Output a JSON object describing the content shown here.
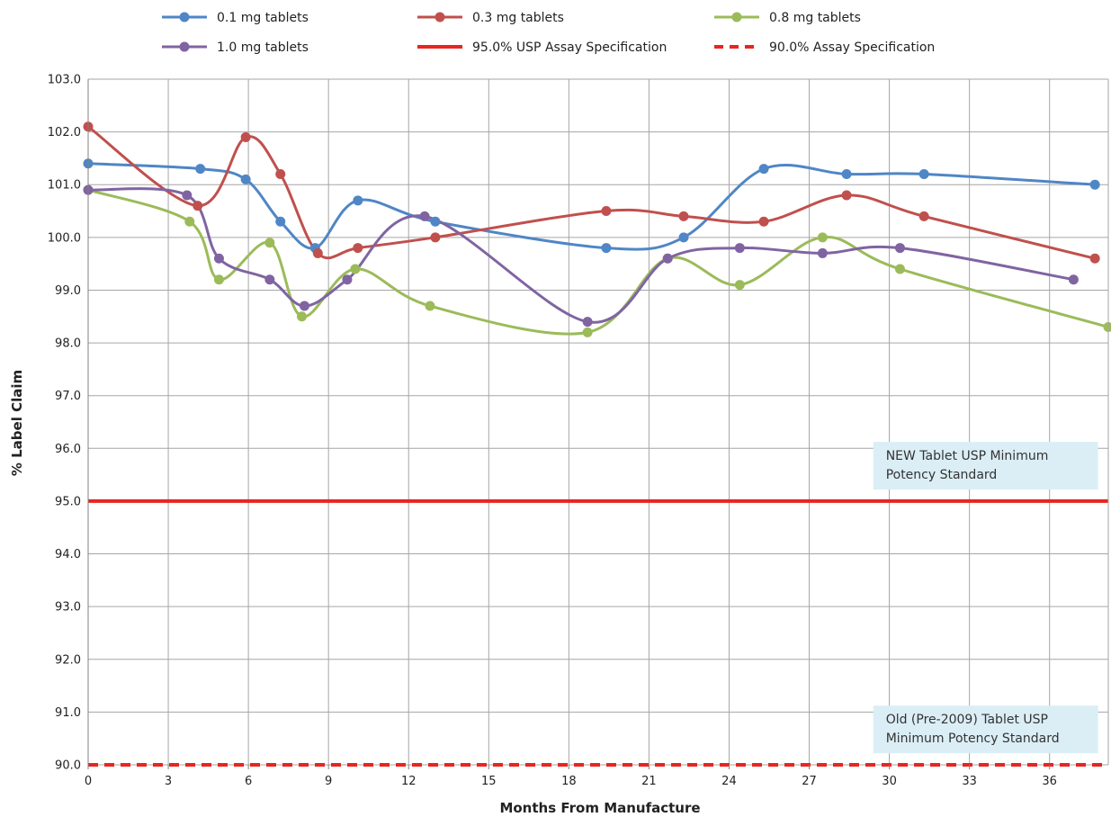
{
  "chart_data": {
    "type": "line",
    "xlabel": "Months From Manufacture",
    "ylabel": "% Label Claim",
    "xlim": [
      0,
      38.2
    ],
    "ylim": [
      90.0,
      103.0
    ],
    "xticks": [
      "0",
      "3",
      "6",
      "9",
      "12",
      "15",
      "18",
      "21",
      "24",
      "27",
      "30",
      "33",
      "36"
    ],
    "xtick_values": [
      0,
      3,
      6,
      9,
      12,
      15,
      18,
      21,
      24,
      27,
      30,
      33,
      36
    ],
    "yticks": [
      "90.0",
      "91.0",
      "92.0",
      "93.0",
      "94.0",
      "95.0",
      "96.0",
      "97.0",
      "98.0",
      "99.0",
      "100.0",
      "101.0",
      "102.0",
      "103.0"
    ],
    "ytick_values": [
      90,
      91,
      92,
      93,
      94,
      95,
      96,
      97,
      98,
      99,
      100,
      101,
      102,
      103
    ],
    "grid": true,
    "legend_position": "top",
    "series": [
      {
        "name": "0.1 mg tablets",
        "color": "#4f86c6",
        "smooth": true,
        "x": [
          0,
          4.2,
          5.9,
          7.2,
          8.5,
          10.1,
          13.0,
          19.4,
          22.3,
          25.3,
          28.4,
          31.3,
          37.7
        ],
        "y": [
          101.4,
          101.3,
          101.1,
          100.3,
          99.8,
          100.7,
          100.3,
          99.8,
          100.0,
          101.3,
          101.2,
          101.2,
          101.0
        ]
      },
      {
        "name": "0.3 mg tablets",
        "color": "#c0504d",
        "smooth": true,
        "x": [
          0,
          4.1,
          5.9,
          7.2,
          8.6,
          10.1,
          13.0,
          19.4,
          22.3,
          25.3,
          28.4,
          31.3,
          37.7
        ],
        "y": [
          102.1,
          100.6,
          101.9,
          101.2,
          99.7,
          99.8,
          100.0,
          100.5,
          100.4,
          100.3,
          100.8,
          100.4,
          99.6
        ]
      },
      {
        "name": "0.8 mg tablets",
        "color": "#9bbb59",
        "smooth": true,
        "x": [
          0,
          3.8,
          4.9,
          6.8,
          8.0,
          10.0,
          12.8,
          18.7,
          21.7,
          24.4,
          27.5,
          30.4,
          38.2
        ],
        "y": [
          100.9,
          100.3,
          99.2,
          99.9,
          98.5,
          99.4,
          98.7,
          98.2,
          99.6,
          99.1,
          100.0,
          99.4,
          98.3
        ]
      },
      {
        "name": "1.0 mg tablets",
        "color": "#8064a2",
        "smooth": true,
        "x": [
          0,
          3.7,
          4.9,
          6.8,
          8.1,
          9.7,
          12.6,
          18.7,
          21.7,
          24.4,
          27.5,
          30.4,
          36.9
        ],
        "y": [
          100.9,
          100.8,
          99.6,
          99.2,
          98.7,
          99.2,
          100.4,
          98.4,
          99.6,
          99.8,
          99.7,
          99.8,
          99.2
        ]
      },
      {
        "name": "95.0% USP Assay Specification",
        "color": "#e8251f",
        "style": "solid",
        "y_constant": 95.0
      },
      {
        "name": "90.0% Assay Specification",
        "color": "#e8251f",
        "style": "dashed",
        "y_constant": 90.0
      }
    ],
    "annotations": [
      {
        "lines": [
          "NEW Tablet USP Minimum",
          "Potency Standard"
        ],
        "x": 29.6,
        "y": 95.85
      },
      {
        "lines": [
          "Old (Pre-2009) Tablet USP",
          "Minimum Potency Standard"
        ],
        "x": 29.6,
        "y": 90.85
      }
    ]
  }
}
